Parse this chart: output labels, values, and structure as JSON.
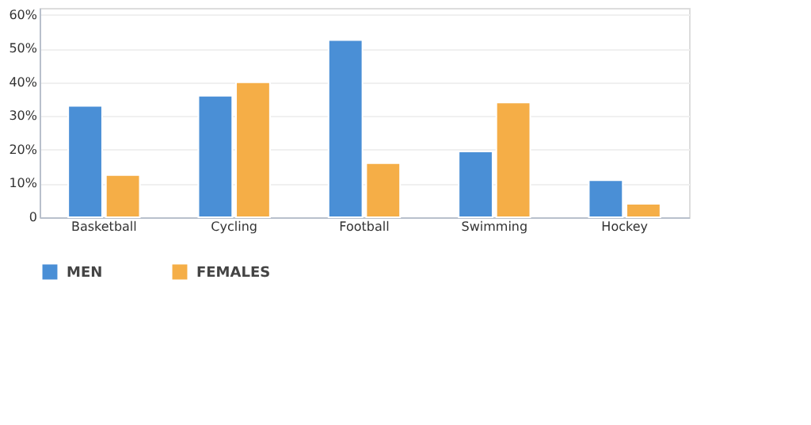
{
  "chart_data": {
    "type": "bar",
    "categories": [
      "Basketball",
      "Cycling",
      "Football",
      "Swimming",
      "Hockey"
    ],
    "series": [
      {
        "name": "MEN",
        "color": "#4a8fd6",
        "values": [
          33,
          36,
          52.5,
          19.5,
          11
        ]
      },
      {
        "name": "FEMALES",
        "color": "#f5ae47",
        "values": [
          12.5,
          40,
          16,
          34,
          4
        ]
      }
    ],
    "ylim": [
      0,
      62
    ],
    "yticks": [
      {
        "value": 0,
        "label": "0"
      },
      {
        "value": 10,
        "label": "10%"
      },
      {
        "value": 20,
        "label": "20%"
      },
      {
        "value": 30,
        "label": "30%"
      },
      {
        "value": 40,
        "label": "40%"
      },
      {
        "value": 50,
        "label": "50%"
      },
      {
        "value": 60,
        "label": "60%"
      }
    ],
    "grid": "y",
    "legend": "bottom"
  }
}
